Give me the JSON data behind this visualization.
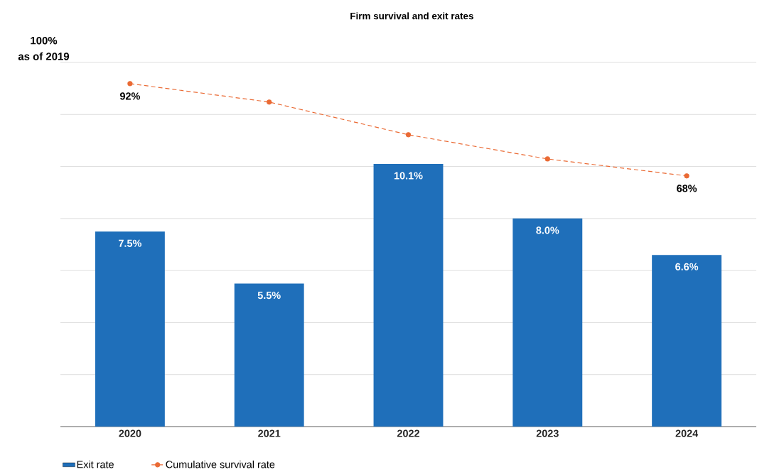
{
  "chart_data": {
    "type": "bar",
    "title": "Firm survival and exit rates",
    "categories": [
      "2020",
      "2021",
      "2022",
      "2023",
      "2024"
    ],
    "series": [
      {
        "name": "Exit rate",
        "color": "#1f6fba",
        "values": [
          7.5,
          5.5,
          10.1,
          8.0,
          6.6
        ],
        "value_labels": [
          "7.5%",
          "5.5%",
          "10.1%",
          "8.0%",
          "6.6%"
        ]
      },
      {
        "name": "Cumulative survival rate",
        "type": "line",
        "axis": "y2",
        "color": "#ea6a34",
        "values": [
          92,
          87.2,
          78.7,
          72.4,
          68
        ],
        "value_labels": [
          "92%",
          null,
          null,
          null,
          "68%"
        ]
      }
    ],
    "ylim": [
      0,
      14
    ],
    "yticks": [
      {
        "value": 0,
        "label": null
      },
      {
        "value": 2,
        "label": null
      },
      {
        "value": 4,
        "label": null
      },
      {
        "value": 6,
        "label": null
      },
      {
        "value": 8,
        "label": null
      },
      {
        "value": 10,
        "label": null
      },
      {
        "value": 12,
        "label": null
      },
      {
        "value": 14,
        "label": null
      }
    ],
    "y2lim": [
      2.8,
      97.5
    ],
    "grid": "y",
    "legend": "bottom left",
    "tick_labels": "x",
    "marker": "circle",
    "line_style": "dashed",
    "annotations": [
      "100%",
      "as of 2019"
    ]
  }
}
